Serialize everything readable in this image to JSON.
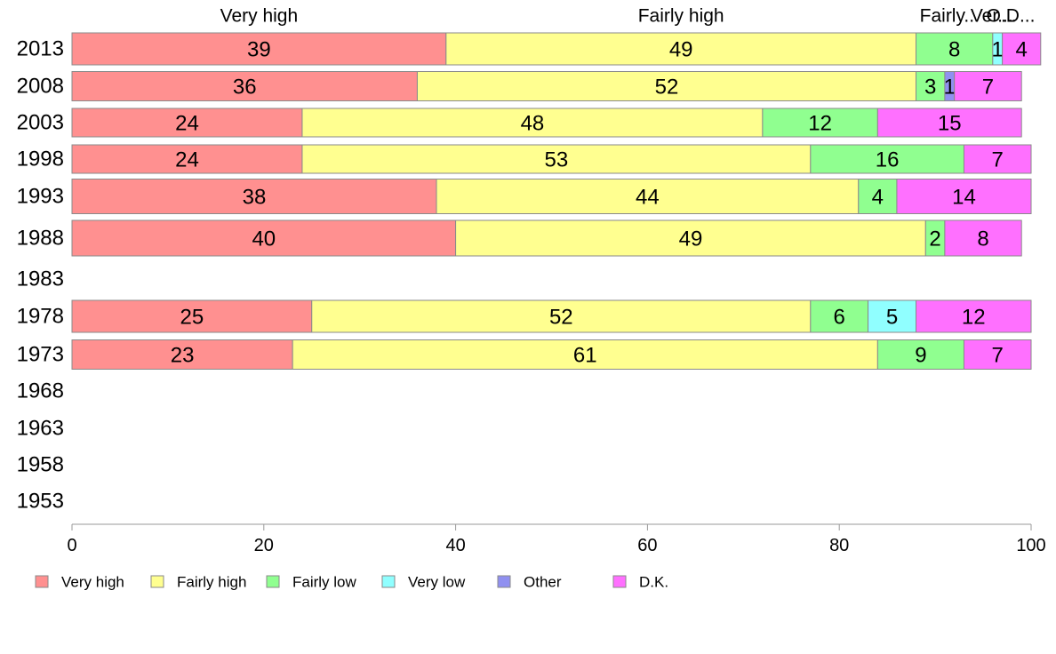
{
  "chart_data": {
    "type": "bar",
    "orientation": "horizontal",
    "stacked": true,
    "categories": [
      "2013",
      "2008",
      "2003",
      "1998",
      "1993",
      "1988",
      "1983",
      "1978",
      "1973",
      "1968",
      "1963",
      "1958",
      "1953"
    ],
    "top_labels": [
      {
        "text": "Very high",
        "at": 19.5
      },
      {
        "text": "Fairly high",
        "at": 63.5
      },
      {
        "text": "Fairly...",
        "at": 91.5
      },
      {
        "text": "Ver...",
        "at": 95.9
      },
      {
        "text": "O...",
        "at": 96.9
      },
      {
        "text": "D...",
        "at": 98.9
      }
    ],
    "series": [
      {
        "name": "Very high",
        "color": "#FF9090",
        "values": [
          39,
          36,
          24,
          24,
          38,
          40,
          null,
          25,
          23,
          null,
          null,
          null,
          null
        ]
      },
      {
        "name": "Fairly high",
        "color": "#FFFF90",
        "values": [
          49,
          52,
          48,
          53,
          44,
          49,
          null,
          52,
          61,
          null,
          null,
          null,
          null
        ]
      },
      {
        "name": "Fairly low",
        "color": "#90FF90",
        "values": [
          8,
          3,
          12,
          16,
          4,
          2,
          null,
          6,
          9,
          null,
          null,
          null,
          null
        ]
      },
      {
        "name": "Very low",
        "color": "#90FFFF",
        "values": [
          1,
          0,
          0,
          0,
          0,
          0,
          null,
          5,
          0,
          null,
          null,
          null,
          null
        ]
      },
      {
        "name": "Other",
        "color": "#9090F0",
        "values": [
          0,
          1,
          0,
          0,
          0,
          0,
          null,
          0,
          0,
          null,
          null,
          null,
          null
        ]
      },
      {
        "name": "D.K.",
        "color": "#FF70FF",
        "values": [
          4,
          7,
          15,
          7,
          14,
          8,
          null,
          12,
          7,
          null,
          null,
          null,
          null
        ]
      }
    ],
    "xlim": [
      0,
      100
    ],
    "xticks": [
      "0",
      "20",
      "40",
      "60",
      "80",
      "100"
    ],
    "legend_position": "bottom",
    "grid": false
  }
}
